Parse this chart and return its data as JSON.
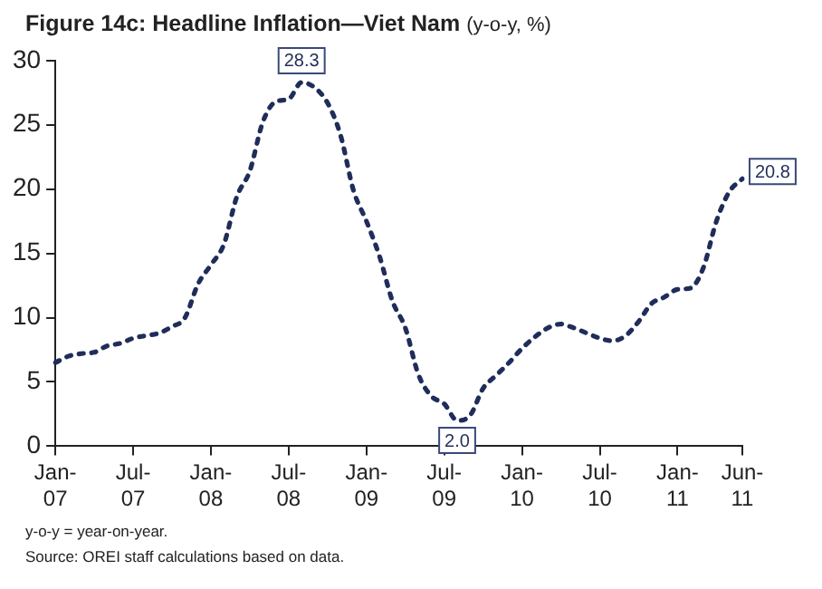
{
  "chart_data": {
    "type": "line",
    "title": "Figure 14c: Headline Inflation—Viet Nam",
    "subtitle": "(y-o-y, %)",
    "categories": [
      "Jan-07",
      null,
      null,
      null,
      null,
      null,
      "Jul-07",
      null,
      null,
      null,
      null,
      null,
      "Jan-08",
      null,
      null,
      null,
      null,
      null,
      "Jul-08",
      null,
      null,
      null,
      null,
      null,
      "Jan-09",
      null,
      null,
      null,
      null,
      null,
      "Jul-09",
      null,
      null,
      null,
      null,
      null,
      "Jan-10",
      null,
      null,
      null,
      null,
      null,
      "Jul-10",
      null,
      null,
      null,
      null,
      null,
      "Jan-11",
      null,
      null,
      null,
      null,
      "Jun-11"
    ],
    "series": [
      {
        "color": "#1f2d5a",
        "values": [
          6.5,
          7.0,
          7.2,
          7.3,
          7.8,
          8.0,
          8.4,
          8.6,
          8.8,
          9.3,
          10.0,
          12.6,
          14.1,
          15.7,
          19.4,
          21.4,
          25.2,
          26.8,
          27.0,
          28.3,
          27.9,
          26.7,
          24.2,
          19.9,
          17.5,
          14.8,
          11.3,
          9.2,
          5.6,
          3.9,
          3.3,
          2.0,
          2.4,
          4.5,
          5.5,
          6.5,
          7.6,
          8.5,
          9.2,
          9.5,
          9.2,
          8.8,
          8.4,
          8.2,
          8.6,
          9.7,
          11.1,
          11.6,
          12.2,
          12.3,
          13.9,
          17.5,
          19.8,
          20.8
        ],
        "value_labels": [
          null,
          null,
          null,
          null,
          null,
          null,
          null,
          null,
          null,
          null,
          null,
          null,
          null,
          null,
          null,
          null,
          null,
          null,
          null,
          "28.3",
          null,
          null,
          null,
          null,
          null,
          null,
          null,
          null,
          null,
          null,
          null,
          "2.0",
          null,
          null,
          null,
          null,
          null,
          null,
          null,
          null,
          null,
          null,
          null,
          null,
          null,
          null,
          null,
          null,
          null,
          null,
          null,
          null,
          null,
          "20.8"
        ]
      }
    ],
    "ylim": [
      0,
      30
    ],
    "yticks": [
      0,
      5,
      10,
      15,
      20,
      25,
      30
    ],
    "grid": false,
    "legend": false,
    "marker": "none",
    "line_style": "dotted",
    "annotations": [
      "y-o-y = year-on-year.",
      "Source: OREI staff calculations based on data."
    ]
  }
}
